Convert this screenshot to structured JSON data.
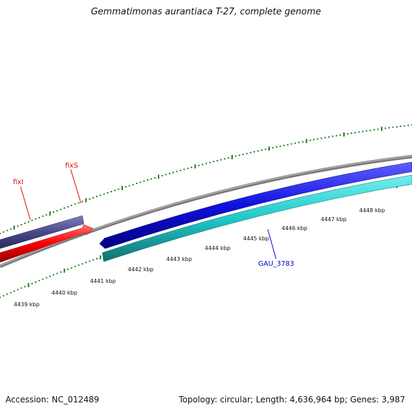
{
  "title": "Gemmatimonas aurantiaca T-27, complete genome",
  "footer": {
    "accession": "Accession: NC_012489",
    "summary": "Topology: circular; Length: 4,636,964 bp; Genes: 3,987"
  },
  "scale_labels": [
    "4439 kbp",
    "4440 kbp",
    "4441 kbp",
    "4442 kbp",
    "4443 kbp",
    "4444 kbp",
    "4445 kbp",
    "4446 kbp",
    "4447 kbp",
    "4448 kbp"
  ],
  "gene_labels": {
    "fixI": "fixI",
    "fixS": "fixS",
    "GAU_3783": "GAU_3783"
  },
  "colors": {
    "backbone": "#808080",
    "tick": "#1a7a1a",
    "purple_gene": "#4a4a8a",
    "red_gene": "#ff0000",
    "blue_gene": "#1010e0",
    "cyan_gene": "#20c8c8",
    "label_red": "#e00000",
    "label_blue": "#0000cc"
  }
}
